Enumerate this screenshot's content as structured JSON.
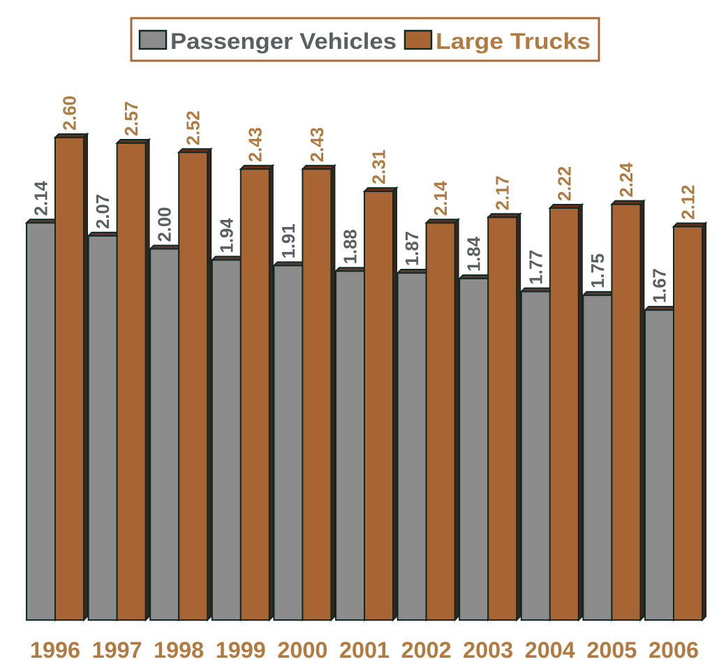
{
  "chart_data": {
    "type": "bar",
    "title": "",
    "xlabel": "",
    "ylabel": "",
    "ylim": [
      0,
      2.6
    ],
    "grid": false,
    "legend_position": "top-center",
    "categories": [
      "1996",
      "1997",
      "1998",
      "1999",
      "2000",
      "2001",
      "2002",
      "2003",
      "2004",
      "2005",
      "2006"
    ],
    "series": [
      {
        "name": "Passenger Vehicles",
        "color": "#8c8c8c",
        "label_color": "#5a6060",
        "values": [
          2.14,
          2.07,
          2.0,
          1.94,
          1.91,
          1.88,
          1.87,
          1.84,
          1.77,
          1.75,
          1.67
        ],
        "labels": [
          "2.14",
          "2.07",
          "2.00",
          "1.94",
          "1.91",
          "1.88",
          "1.87",
          "1.84",
          "1.77",
          "1.75",
          "1.67"
        ]
      },
      {
        "name": "Large Trucks",
        "color": "#a86432",
        "label_color": "#b07a40",
        "values": [
          2.6,
          2.57,
          2.52,
          2.43,
          2.43,
          2.31,
          2.14,
          2.17,
          2.22,
          2.24,
          2.12
        ],
        "labels": [
          "2.60",
          "2.57",
          "2.52",
          "2.43",
          "2.43",
          "2.31",
          "2.14",
          "2.17",
          "2.22",
          "2.24",
          "2.12"
        ]
      }
    ]
  }
}
